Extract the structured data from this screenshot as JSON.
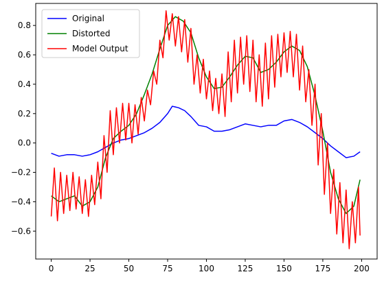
{
  "chart_data": {
    "type": "line",
    "title": "",
    "xlabel": "",
    "ylabel": "",
    "xlim": [
      -10,
      210
    ],
    "ylim": [
      -0.79,
      0.95
    ],
    "xticks": [
      0,
      25,
      50,
      75,
      100,
      125,
      150,
      175,
      200
    ],
    "yticks": [
      -0.6,
      -0.4,
      -0.2,
      0.0,
      0.2,
      0.4,
      0.6,
      0.8
    ],
    "ytick_labels": [
      "−0.6",
      "−0.4",
      "−0.2",
      "0.0",
      "0.2",
      "0.4",
      "0.6",
      "0.8"
    ],
    "grid": false,
    "legend": {
      "position": "top-left"
    },
    "series": [
      {
        "name": "Original",
        "color": "#0000ff",
        "x": [
          0,
          5,
          10,
          15,
          20,
          25,
          30,
          35,
          40,
          45,
          50,
          55,
          60,
          65,
          70,
          75,
          78,
          82,
          86,
          90,
          95,
          100,
          105,
          110,
          115,
          120,
          125,
          130,
          135,
          140,
          145,
          150,
          155,
          160,
          165,
          170,
          175,
          180,
          185,
          190,
          195,
          199
        ],
        "y": [
          -0.07,
          -0.09,
          -0.08,
          -0.08,
          -0.09,
          -0.08,
          -0.06,
          -0.03,
          0.0,
          0.02,
          0.03,
          0.05,
          0.07,
          0.1,
          0.14,
          0.2,
          0.25,
          0.24,
          0.22,
          0.18,
          0.12,
          0.11,
          0.08,
          0.08,
          0.09,
          0.11,
          0.13,
          0.12,
          0.11,
          0.12,
          0.12,
          0.15,
          0.16,
          0.14,
          0.11,
          0.07,
          0.03,
          -0.02,
          -0.06,
          -0.1,
          -0.09,
          -0.06
        ]
      },
      {
        "name": "Distorted",
        "color": "#008000",
        "x": [
          0,
          5,
          10,
          15,
          20,
          25,
          30,
          35,
          40,
          45,
          50,
          55,
          60,
          65,
          70,
          75,
          80,
          85,
          90,
          95,
          100,
          105,
          110,
          115,
          120,
          125,
          130,
          135,
          140,
          145,
          150,
          155,
          160,
          165,
          170,
          175,
          180,
          185,
          190,
          195,
          199
        ],
        "y": [
          -0.36,
          -0.4,
          -0.38,
          -0.36,
          -0.43,
          -0.4,
          -0.3,
          -0.1,
          0.03,
          0.08,
          0.12,
          0.2,
          0.33,
          0.47,
          0.64,
          0.8,
          0.86,
          0.83,
          0.75,
          0.58,
          0.45,
          0.37,
          0.38,
          0.45,
          0.53,
          0.59,
          0.58,
          0.48,
          0.5,
          0.55,
          0.62,
          0.66,
          0.63,
          0.52,
          0.32,
          0.08,
          -0.2,
          -0.38,
          -0.48,
          -0.43,
          -0.25
        ]
      },
      {
        "name": "Model Output",
        "color": "#ff0000",
        "x": [
          0,
          2,
          4,
          6,
          8,
          10,
          12,
          14,
          16,
          18,
          20,
          22,
          24,
          26,
          28,
          30,
          32,
          34,
          36,
          38,
          40,
          42,
          44,
          46,
          48,
          50,
          52,
          54,
          56,
          58,
          60,
          62,
          64,
          66,
          68,
          70,
          72,
          74,
          76,
          78,
          80,
          82,
          84,
          86,
          88,
          90,
          92,
          94,
          96,
          98,
          100,
          102,
          104,
          106,
          108,
          110,
          112,
          114,
          116,
          118,
          120,
          122,
          124,
          126,
          128,
          130,
          132,
          134,
          136,
          138,
          140,
          142,
          144,
          146,
          148,
          150,
          152,
          154,
          156,
          158,
          160,
          162,
          164,
          166,
          168,
          170,
          172,
          174,
          176,
          178,
          180,
          182,
          184,
          186,
          188,
          190,
          192,
          194,
          196,
          198,
          199
        ],
        "y": [
          -0.5,
          -0.17,
          -0.53,
          -0.2,
          -0.48,
          -0.22,
          -0.46,
          -0.2,
          -0.45,
          -0.23,
          -0.48,
          -0.25,
          -0.5,
          -0.22,
          -0.42,
          -0.13,
          -0.38,
          0.05,
          -0.2,
          0.22,
          -0.08,
          0.24,
          0.0,
          0.27,
          0.02,
          0.27,
          0.0,
          0.26,
          0.06,
          0.31,
          0.15,
          0.36,
          0.26,
          0.49,
          0.4,
          0.7,
          0.58,
          0.9,
          0.7,
          0.88,
          0.66,
          0.86,
          0.62,
          0.84,
          0.55,
          0.78,
          0.4,
          0.6,
          0.34,
          0.57,
          0.3,
          0.49,
          0.22,
          0.44,
          0.2,
          0.47,
          0.18,
          0.62,
          0.28,
          0.7,
          0.34,
          0.72,
          0.4,
          0.73,
          0.35,
          0.7,
          0.28,
          0.6,
          0.25,
          0.68,
          0.3,
          0.73,
          0.38,
          0.74,
          0.45,
          0.75,
          0.48,
          0.76,
          0.45,
          0.74,
          0.36,
          0.66,
          0.28,
          0.5,
          0.12,
          0.4,
          -0.15,
          0.2,
          -0.35,
          0.0,
          -0.48,
          -0.18,
          -0.62,
          -0.27,
          -0.68,
          -0.32,
          -0.72,
          -0.4,
          -0.68,
          -0.3,
          -0.63
        ]
      }
    ]
  }
}
